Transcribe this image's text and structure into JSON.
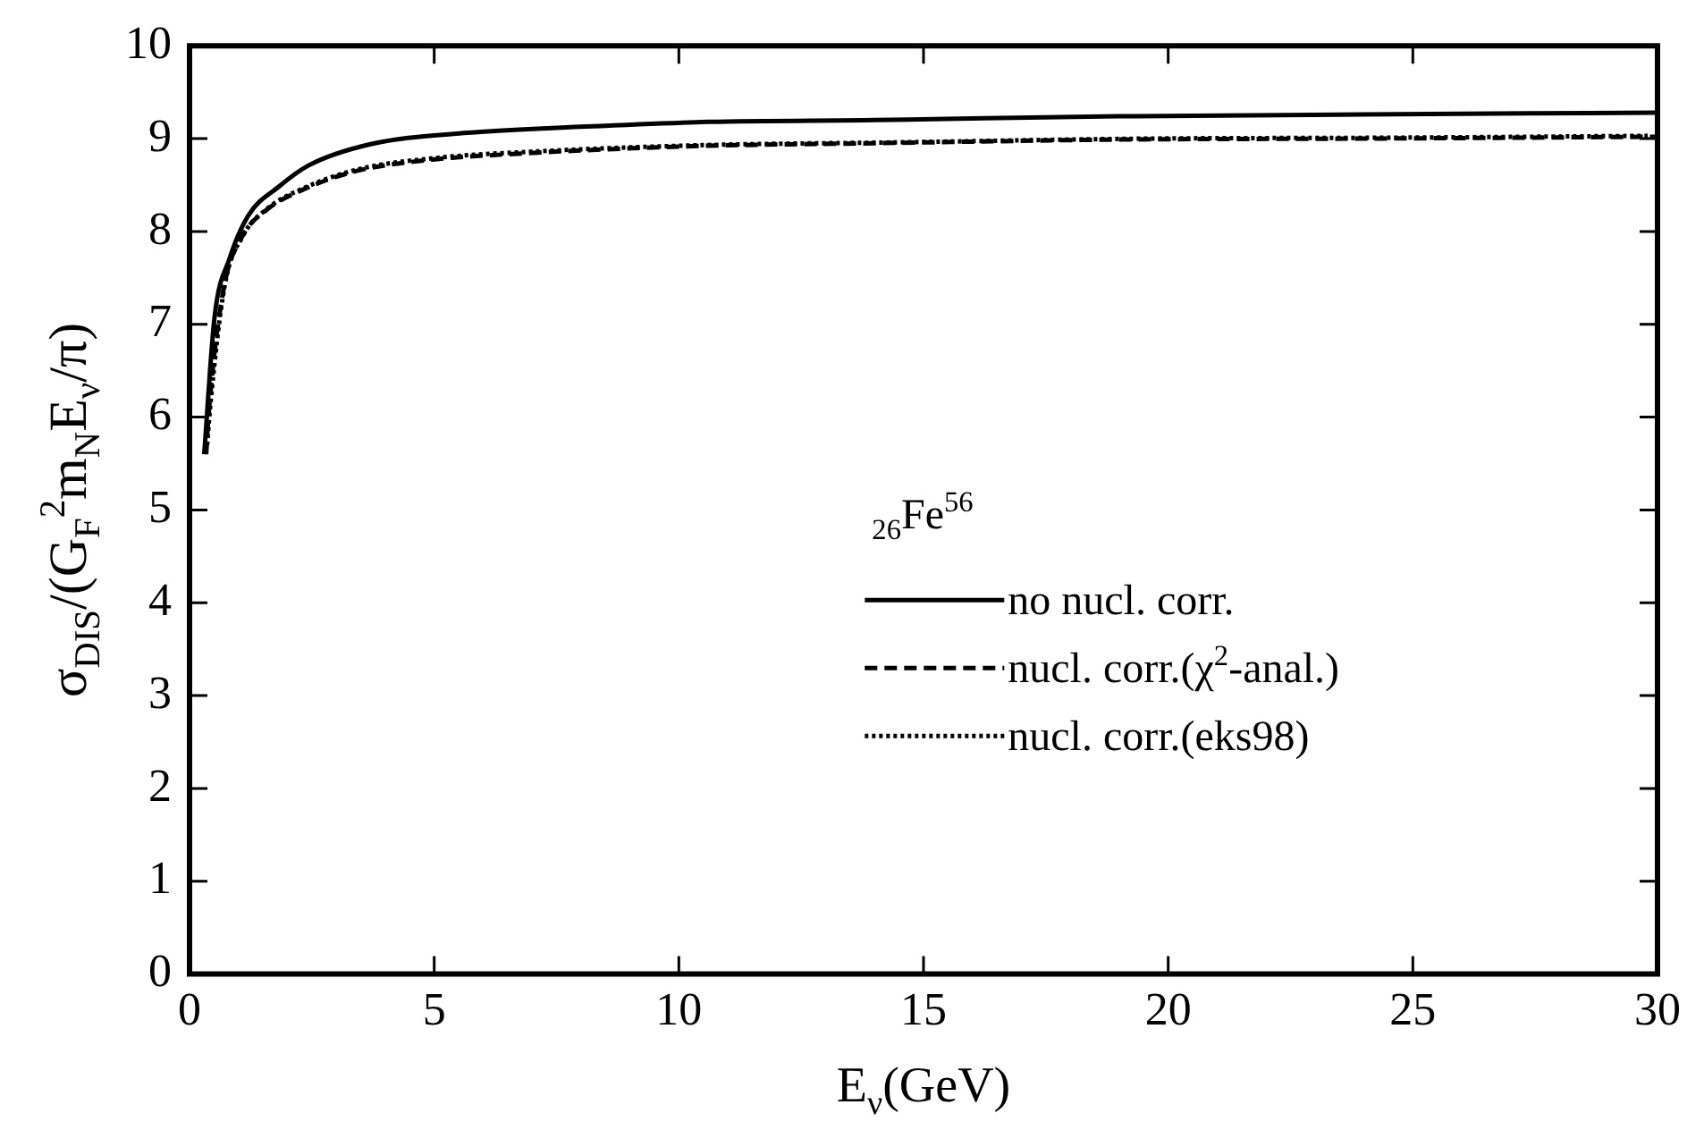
{
  "chart_data": {
    "type": "line",
    "xlabel": "E$_{ν}$(GeV)",
    "ylabel": "σ$_{DIS}$/(G$_{F}$$^{2}$m$_{N}$E$_{ν}$/π)",
    "legend_title": "$_{26}$Fe$^{56}$",
    "xlim": [
      0,
      30
    ],
    "xticks": [
      0,
      5,
      10,
      15,
      20,
      25,
      30
    ],
    "ylim": [
      0,
      10
    ],
    "yticks": [
      0,
      1,
      2,
      3,
      4,
      5,
      6,
      7,
      8,
      9,
      10
    ],
    "grid": false,
    "legend": "right",
    "marker": "none",
    "series": [
      {
        "name": "no nucl. corr.",
        "color": "#000000",
        "line_style": "solid",
        "x": [
          0.3,
          0.51,
          0.82,
          1.2,
          1.82,
          2.43,
          3.7,
          5.6,
          8.1,
          10.6,
          14,
          19,
          24,
          30
        ],
        "values": [
          5.6,
          7.07,
          7.71,
          8.17,
          8.48,
          8.71,
          8.94,
          9.06,
          9.13,
          9.18,
          9.2,
          9.24,
          9.26,
          9.28
        ]
      },
      {
        "name": "nucl. corr.(χ$^{2}$-anal.)",
        "color": "#000000",
        "line_style": "dashed",
        "x": [
          0.34,
          0.39,
          0.7,
          1.07,
          1.57,
          2.32,
          3.4,
          4.9,
          6.8,
          10.4,
          14,
          19,
          24,
          30
        ],
        "values": [
          5.6,
          6.03,
          7.39,
          7.94,
          8.23,
          8.45,
          8.65,
          8.77,
          8.84,
          8.92,
          8.95,
          8.99,
          9.0,
          9.02
        ]
      },
      {
        "name": "nucl. corr.(eks98)",
        "color": "#000000",
        "line_style": "dotted",
        "x": [
          0.36,
          0.42,
          0.72,
          1.1,
          1.6,
          2.35,
          3.45,
          5,
          7,
          10.5,
          14.5,
          19.5,
          24.5,
          29.8
        ],
        "values": [
          5.7,
          6.1,
          7.42,
          7.96,
          8.25,
          8.47,
          8.67,
          8.79,
          8.86,
          8.93,
          8.96,
          9.0,
          9.01,
          9.03
        ]
      }
    ]
  }
}
